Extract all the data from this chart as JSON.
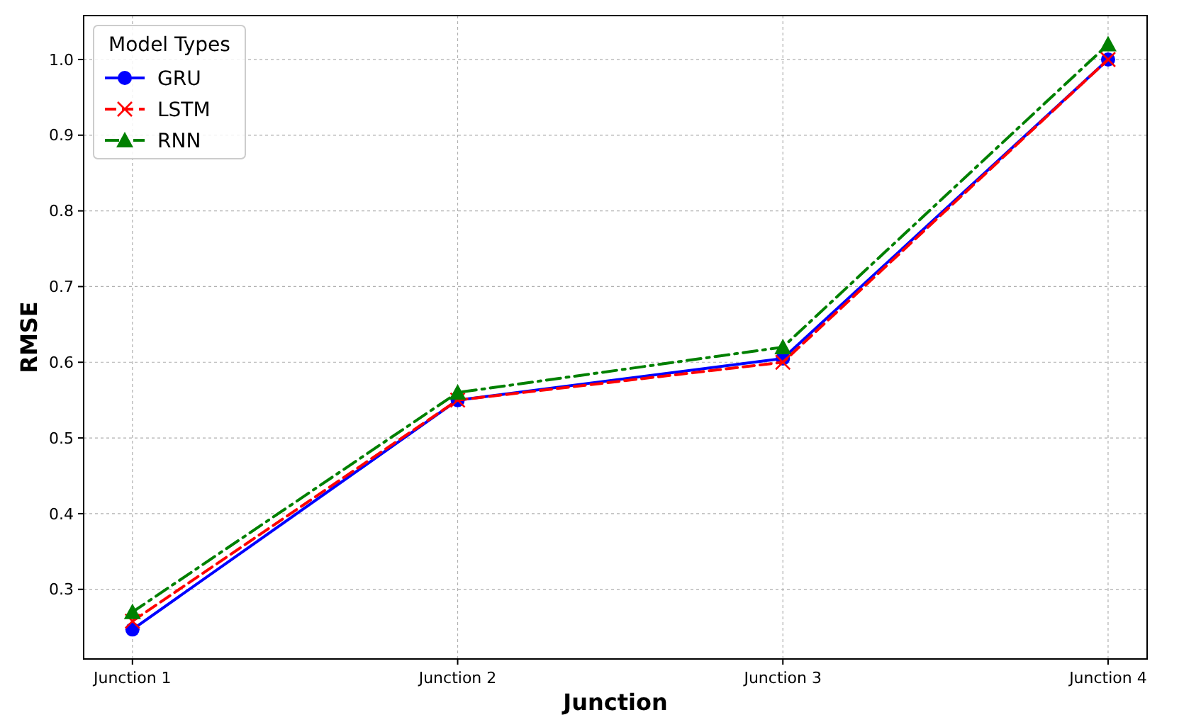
{
  "chart_data": {
    "type": "line",
    "xlabel": "Junction",
    "ylabel": "RMSE",
    "categories": [
      "Junction 1",
      "Junction 2",
      "Junction 3",
      "Junction 4"
    ],
    "series": [
      {
        "name": "GRU",
        "color": "#0000ff",
        "values": [
          0.247,
          0.55,
          0.605,
          1.0
        ],
        "marker": "circle",
        "line_style": "solid"
      },
      {
        "name": "LSTM",
        "color": "#ff0000",
        "values": [
          0.258,
          0.55,
          0.6,
          1.0
        ],
        "marker": "cross",
        "line_style": "dashed"
      },
      {
        "name": "RNN",
        "color": "#008000",
        "values": [
          0.27,
          0.56,
          0.62,
          1.02
        ],
        "marker": "triangle",
        "line_style": "dashdot"
      }
    ],
    "ylim": [
      0.208,
      1.058
    ],
    "yticks": [
      0.3,
      0.4,
      0.5,
      0.6,
      0.7,
      0.8,
      0.9,
      {
        "value": 1,
        "label": "1.0"
      }
    ],
    "grid": true,
    "legend": "top left",
    "legend_title": "Model Types"
  }
}
